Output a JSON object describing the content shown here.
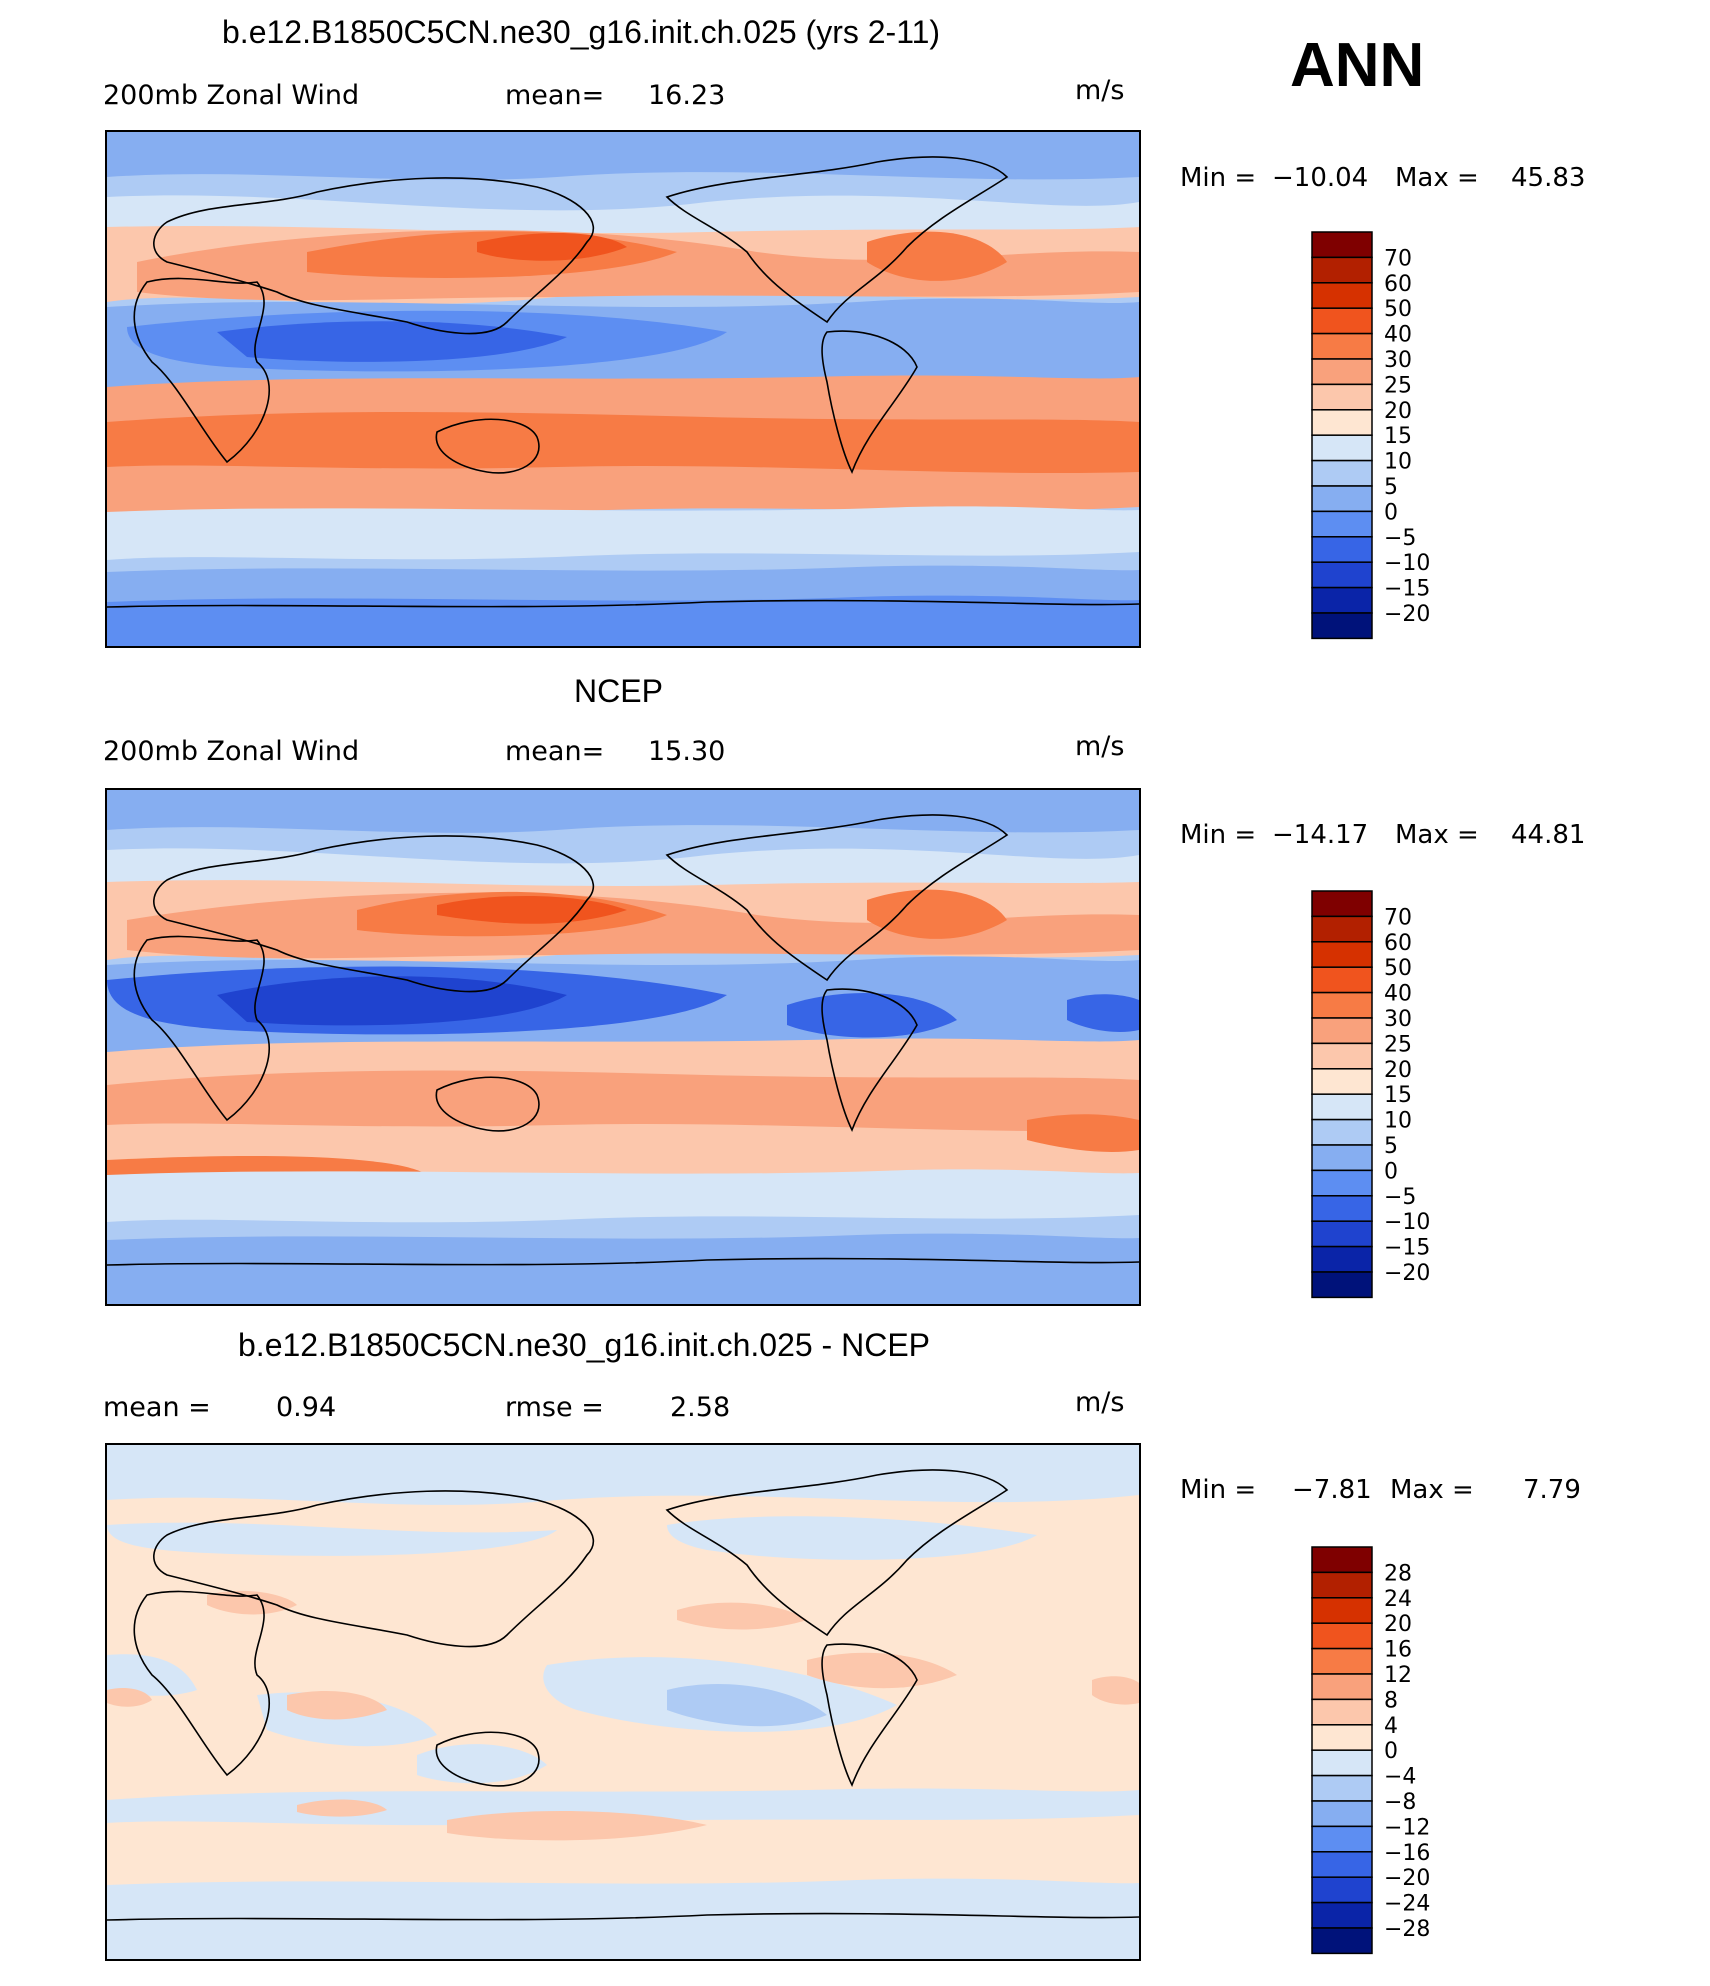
{
  "season": "ANN",
  "panels": [
    {
      "title": "b.e12.B1850C5CN.ne30_g16.init.ch.025 (yrs 2-11)",
      "left_label": "200mb  Zonal  Wind",
      "stat_label": "mean=",
      "stat_value": "16.23",
      "units": "m/s",
      "min_label": "Min  =",
      "min_value": "−10.04",
      "max_label": "Max  =",
      "max_value": "45.83",
      "levels": [
        "70",
        "60",
        "50",
        "40",
        "30",
        "25",
        "20",
        "15",
        "10",
        "5",
        "0",
        "−5",
        "−10",
        "−15",
        "−20"
      ]
    },
    {
      "title": "NCEP",
      "left_label": "200mb  Zonal  Wind",
      "stat_label": "mean=",
      "stat_value": "15.30",
      "units": "m/s",
      "min_label": "Min  =",
      "min_value": "−14.17",
      "max_label": "Max  =",
      "max_value": "44.81",
      "levels": [
        "70",
        "60",
        "50",
        "40",
        "30",
        "25",
        "20",
        "15",
        "10",
        "5",
        "0",
        "−5",
        "−10",
        "−15",
        "−20"
      ]
    },
    {
      "title": "b.e12.B1850C5CN.ne30_g16.init.ch.025 - NCEP",
      "left_label": "mean  =",
      "left_value": "0.94",
      "stat_label": "rmse  =",
      "stat_value": "2.58",
      "units": "m/s",
      "min_label": "Min  =",
      "min_value": "−7.81",
      "max_label": "Max  =",
      "max_value": "7.79",
      "levels": [
        "28",
        "24",
        "20",
        "16",
        "12",
        "8",
        "4",
        "0",
        "−4",
        "−8",
        "−12",
        "−16",
        "−20",
        "−24",
        "−28"
      ]
    }
  ],
  "colorbar_colors": [
    "#7f0000",
    "#b22000",
    "#d63100",
    "#f0541e",
    "#f77b45",
    "#f9a17c",
    "#fcc7ac",
    "#fee6d2",
    "#d6e6f7",
    "#aecbf4",
    "#86aef1",
    "#5d8ef2",
    "#3765e6",
    "#1f43cf",
    "#0a24a8",
    "#00127a"
  ],
  "field_colors": {
    "strong_jet": "#f0541e",
    "jet": "#f77b45",
    "weak_jet": "#f9a17c",
    "pale_warm": "#fcc7ac",
    "very_pale_warm": "#fee6d2",
    "pale_cool": "#d6e6f7",
    "cool": "#aecbf4",
    "mid_cool": "#86aef1",
    "easterly": "#5d8ef2",
    "strong_easterly": "#3765e6",
    "deep_easterly": "#1f43cf"
  }
}
